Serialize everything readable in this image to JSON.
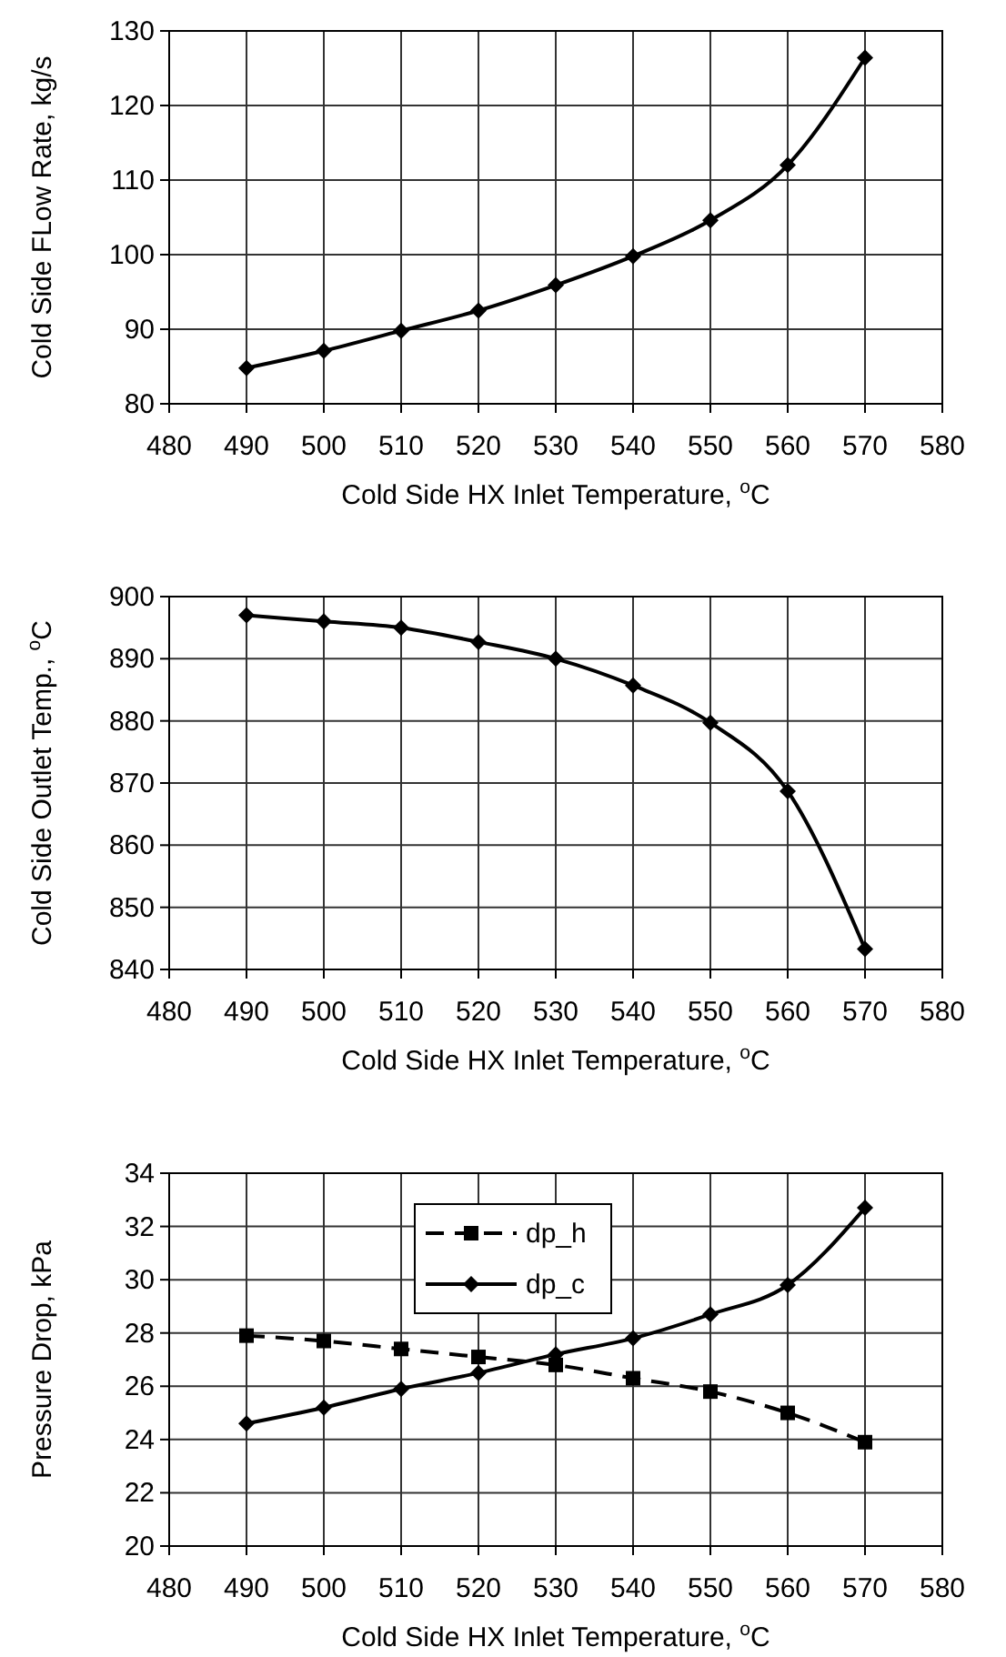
{
  "chart_data": [
    {
      "type": "line",
      "xlabel": "Cold Side HX Inlet Temperature, $^{o}$C",
      "ylabel": "Cold Side FLow Rate, kg/s",
      "x": [
        490,
        500,
        510,
        520,
        530,
        540,
        550,
        560,
        570
      ],
      "series": [
        {
          "color": "#000000",
          "values": [
            84.8,
            87.1,
            89.8,
            92.5,
            95.9,
            99.8,
            104.6,
            112.0,
            126.4
          ]
        }
      ],
      "xlim": [
        480,
        580
      ],
      "xticks": [
        480,
        490,
        500,
        510,
        520,
        530,
        540,
        550,
        560,
        570,
        580
      ],
      "ylim": [
        80,
        130
      ],
      "yticks": [
        80,
        90,
        100,
        110,
        120,
        130
      ],
      "grid": true,
      "marker": "diamond",
      "line_style": "solid",
      "legend": false
    },
    {
      "type": "line",
      "xlabel": "Cold Side HX Inlet Temperature, $^{o}$C",
      "ylabel": "Cold Side Outlet Temp., $^{o}$C",
      "x": [
        490,
        500,
        510,
        520,
        530,
        540,
        550,
        560,
        570
      ],
      "series": [
        {
          "color": "#000000",
          "values": [
            897,
            896,
            895,
            892.7,
            890,
            885.7,
            879.7,
            868.7,
            843.3
          ]
        }
      ],
      "xlim": [
        480,
        580
      ],
      "xticks": [
        480,
        490,
        500,
        510,
        520,
        530,
        540,
        550,
        560,
        570,
        580
      ],
      "ylim": [
        840,
        900
      ],
      "yticks": [
        840,
        850,
        860,
        870,
        880,
        890,
        900
      ],
      "grid": true,
      "marker": "diamond",
      "line_style": "solid",
      "legend": false
    },
    {
      "type": "line",
      "xlabel": "Cold Side HX Inlet Temperature, $^{o}$C",
      "ylabel": "Pressure Drop, kPa",
      "x": [
        490,
        500,
        510,
        520,
        530,
        540,
        550,
        560,
        570
      ],
      "series": [
        {
          "name": "dp_h",
          "color": "#000000",
          "marker": "square",
          "line_style": "dashed",
          "values": [
            27.9,
            27.7,
            27.4,
            27.1,
            26.8,
            26.3,
            25.8,
            25.0,
            23.9
          ]
        },
        {
          "name": "dp_c",
          "color": "#000000",
          "marker": "diamond",
          "line_style": "solid",
          "values": [
            24.6,
            25.2,
            25.9,
            26.5,
            27.2,
            27.8,
            28.7,
            29.8,
            32.7
          ]
        }
      ],
      "xlim": [
        480,
        580
      ],
      "xticks": [
        480,
        490,
        500,
        510,
        520,
        530,
        540,
        550,
        560,
        570,
        580
      ],
      "ylim": [
        20,
        34
      ],
      "yticks": [
        20,
        22,
        24,
        26,
        28,
        30,
        32,
        34
      ],
      "grid": true,
      "legend": "top"
    }
  ]
}
